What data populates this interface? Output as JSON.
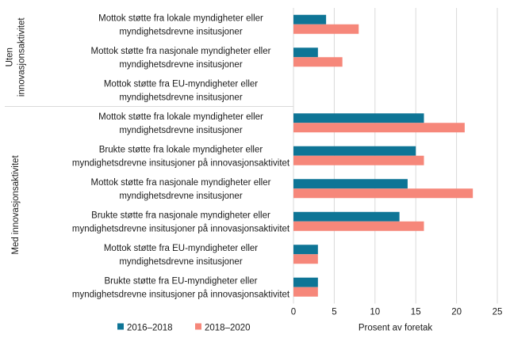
{
  "chart_data": {
    "type": "bar",
    "orientation": "horizontal",
    "xlabel": "Prosent av foretak",
    "xlim": [
      0,
      25
    ],
    "xticks": [
      0,
      5,
      10,
      15,
      20,
      25
    ],
    "grid": true,
    "legend_position": "bottom-left",
    "groups": [
      {
        "name": "Uten innovasjonsaktivitet",
        "lines": [
          "Uten",
          "innovasjonsaktivitet"
        ]
      },
      {
        "name": "Med innovasjonsaktivitet",
        "lines": [
          "Med innovasjonsaktivitet"
        ]
      }
    ],
    "categories": [
      {
        "group": 0,
        "lines": [
          "Mottok støtte fra lokale myndigheter eller",
          "myndighetsdrevne insitusjoner"
        ]
      },
      {
        "group": 0,
        "lines": [
          "Mottok støtte fra nasjonale myndigheter eller",
          "myndighetsdrevne insitusjoner"
        ]
      },
      {
        "group": 0,
        "lines": [
          "Mottok støtte fra EU-myndigheter eller",
          "myndighetsdrevne insitusjoner"
        ]
      },
      {
        "group": 1,
        "lines": [
          "Mottok støtte fra lokale myndigheter eller",
          "myndighetsdrevne insitusjoner"
        ]
      },
      {
        "group": 1,
        "lines": [
          "Brukte støtte fra lokale myndigheter eller",
          "myndighetsdrevne insitusjoner på innovasjonsaktivitet"
        ]
      },
      {
        "group": 1,
        "lines": [
          "Mottok støtte fra nasjonale myndigheter eller",
          "myndighetsdrevne insitusjoner"
        ]
      },
      {
        "group": 1,
        "lines": [
          "Brukte støtte fra nasjonale myndigheter eller",
          "myndighetsdrevne insitusjoner på innovasjonsaktivitet"
        ]
      },
      {
        "group": 1,
        "lines": [
          "Mottok støtte fra EU-myndigheter eller",
          "myndighetsdrevne insitusjoner"
        ]
      },
      {
        "group": 1,
        "lines": [
          "Brukte støtte fra EU-myndigheter eller",
          "myndighetsdrevne insitusjoner på innovasjonsaktivitet"
        ]
      }
    ],
    "series": [
      {
        "name": "2016–2018",
        "color": "#0e7596",
        "values": [
          4,
          3,
          0,
          16,
          15,
          14,
          13,
          3,
          3
        ]
      },
      {
        "name": "2018–2020",
        "color": "#f6877a",
        "values": [
          8,
          6,
          0,
          21,
          16,
          22,
          16,
          3,
          3
        ]
      }
    ]
  }
}
